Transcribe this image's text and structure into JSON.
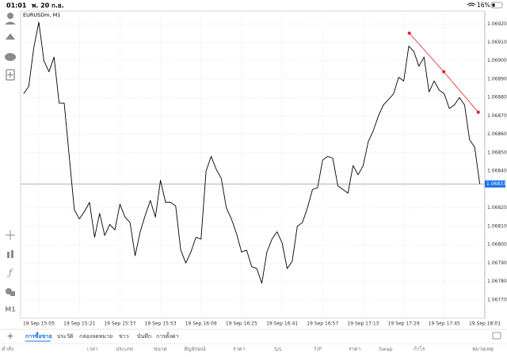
{
  "status_bar": {
    "time": "01:01",
    "date": "พ. 20 ก.ย.",
    "battery": "16%"
  },
  "toolbar": {
    "timeframe": "M1"
  },
  "chart_data": {
    "type": "line",
    "title": "EURUSDm, M1",
    "color": "#000000",
    "values": [
      1.06882,
      1.06886,
      1.06907,
      1.06921,
      1.069,
      1.06894,
      1.06902,
      1.06877,
      1.06877,
      1.06848,
      1.06819,
      1.06814,
      1.06818,
      1.06823,
      1.06804,
      1.06817,
      1.06805,
      1.06811,
      1.06808,
      1.06822,
      1.06815,
      1.06812,
      1.06794,
      1.06807,
      1.06816,
      1.06824,
      1.06815,
      1.06835,
      1.06823,
      1.06823,
      1.06821,
      1.06797,
      1.0679,
      1.06796,
      1.06804,
      1.06803,
      1.0684,
      1.06848,
      1.06841,
      1.06836,
      1.0682,
      1.06814,
      1.06806,
      1.06796,
      1.06797,
      1.06788,
      1.06787,
      1.06779,
      1.06796,
      1.06803,
      1.06807,
      1.06801,
      1.06787,
      1.06791,
      1.0681,
      1.06812,
      1.0682,
      1.0683,
      1.06831,
      1.06846,
      1.06848,
      1.06847,
      1.06832,
      1.0683,
      1.06828,
      1.06843,
      1.06838,
      1.06843,
      1.06856,
      1.06862,
      1.0687,
      1.06876,
      1.06879,
      1.06882,
      1.06891,
      1.06889,
      1.06908,
      1.06905,
      1.06897,
      1.06902,
      1.06883,
      1.06889,
      1.06884,
      1.06882,
      1.06874,
      1.06876,
      1.0688,
      1.06876,
      1.06857,
      1.06853,
      1.06833
    ],
    "xlim": [
      -0.6,
      91
    ],
    "ylim": [
      1.0676,
      1.06927
    ],
    "xticks": [
      {
        "value": 3,
        "label": "19 Sep 15:05"
      },
      {
        "value": 11,
        "label": "19 Sep 15:21"
      },
      {
        "value": 19,
        "label": "19 Sep 15:37"
      },
      {
        "value": 27,
        "label": "19 Sep 15:53"
      },
      {
        "value": 35,
        "label": "19 Sep 16:09"
      },
      {
        "value": 43,
        "label": "19 Sep 16:25"
      },
      {
        "value": 51,
        "label": "19 Sep 16:41"
      },
      {
        "value": 59,
        "label": "19 Sep 16:57"
      },
      {
        "value": 67,
        "label": "19 Sep 17:13"
      },
      {
        "value": 75,
        "label": "19 Sep 17:29"
      },
      {
        "value": 83,
        "label": "19 Sep 17:45"
      },
      {
        "value": 91,
        "label": "19 Sep 18:01"
      }
    ],
    "yticks": [
      {
        "value": 1.0692,
        "label": "1.06920"
      },
      {
        "value": 1.0691,
        "label": "1.06910"
      },
      {
        "value": 1.069,
        "label": "1.06900"
      },
      {
        "value": 1.0689,
        "label": "1.06890"
      },
      {
        "value": 1.0688,
        "label": "1.06880"
      },
      {
        "value": 1.0687,
        "label": "1.06870"
      },
      {
        "value": 1.0686,
        "label": "1.06860"
      },
      {
        "value": 1.0685,
        "label": "1.06850"
      },
      {
        "value": 1.0684,
        "label": "1.06840"
      },
      {
        "value": 1.0682,
        "label": "1.06820"
      },
      {
        "value": 1.0681,
        "label": "1.06810"
      },
      {
        "value": 1.068,
        "label": "1.06800"
      },
      {
        "value": 1.0679,
        "label": "1.06790"
      },
      {
        "value": 1.0678,
        "label": "1.06780"
      },
      {
        "value": 1.0677,
        "label": "1.06770"
      }
    ],
    "grid": true,
    "current_price": 1.06833,
    "trendline": {
      "color": "#e02020",
      "x": [
        76.1,
        82.9,
        89.7
      ],
      "values": [
        1.06915,
        1.06894,
        1.06872
      ]
    }
  },
  "tabs": {
    "active": "การซื้อขาย",
    "items": [
      "ประวัติ",
      "กล่องจดหมาย",
      "ข่าว",
      "บันทึก",
      "การตั้งค่า"
    ]
  },
  "table": {
    "columns": [
      "คำสั่ง",
      "เวลา",
      "ประเภท",
      "ขนาด",
      "สัญลักษณ์",
      "ราคา",
      "S/L",
      "T/P",
      "ราคา",
      "Swap",
      "กำไร",
      "หมายเหตุ"
    ]
  }
}
